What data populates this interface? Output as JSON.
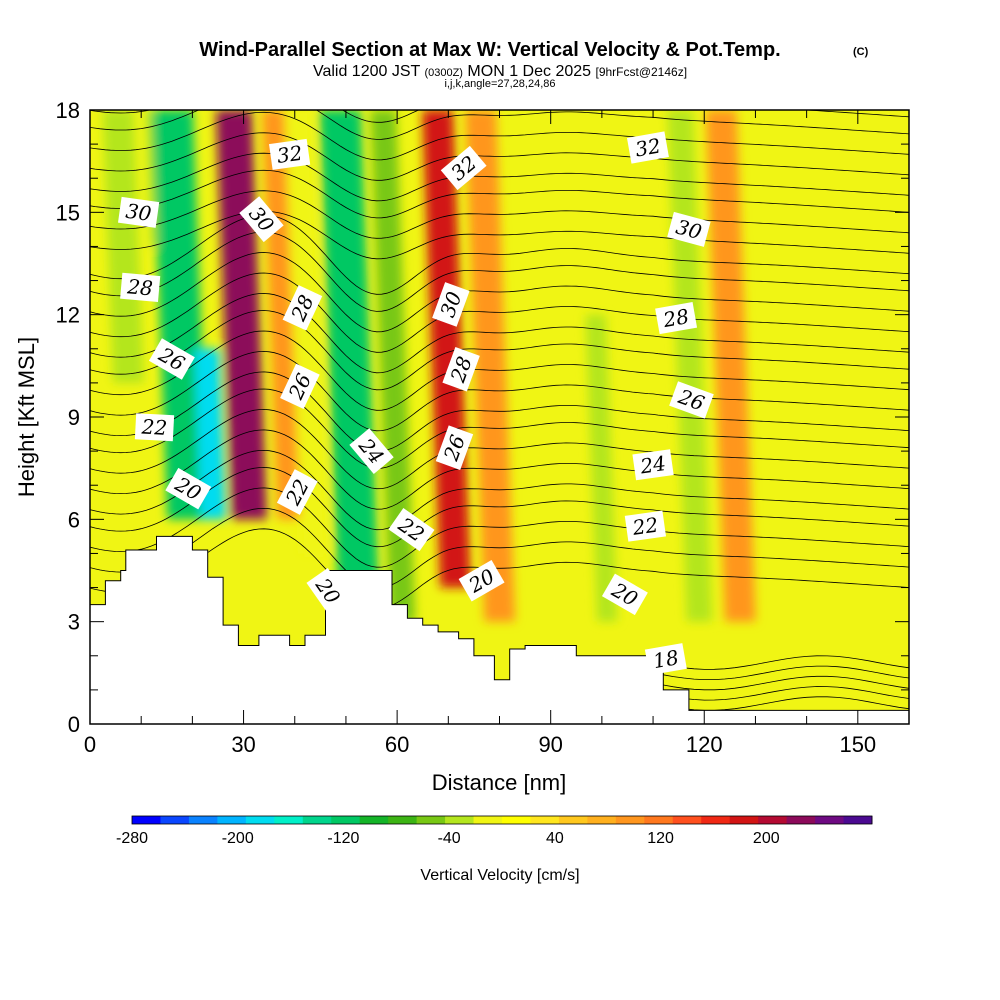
{
  "chart_data": {
    "type": "heatmap",
    "title": "Wind-Parallel Section at Max W: Vertical Velocity & Pot.Temp.",
    "copyright_mark": "(C)",
    "subtitle": {
      "valid": "Valid 1200 JST",
      "utc": "(0300Z)",
      "date": "MON 1 Dec 2025",
      "fcst": "[9hrFcst@2146z]",
      "indices": "i,j,k,angle=27,28,24,86"
    },
    "xlabel": "Distance [nm]",
    "ylabel": "Height [Kft MSL]",
    "xlim": [
      0,
      160
    ],
    "ylim": [
      0,
      18
    ],
    "xticks": [
      0,
      30,
      60,
      90,
      120,
      150
    ],
    "yticks": [
      0,
      3,
      6,
      9,
      12,
      15,
      18
    ],
    "colorbar": {
      "label": "Vertical Velocity [cm/s]",
      "ticks": [
        -280,
        -200,
        -120,
        -40,
        40,
        120,
        200
      ],
      "colors": [
        "#0000ff",
        "#0a46ff",
        "#0a82ff",
        "#00b4ff",
        "#00dcf0",
        "#00f0c8",
        "#00d58c",
        "#00c864",
        "#14b428",
        "#3cb414",
        "#78c814",
        "#b4e61e",
        "#f0f514",
        "#ffff00",
        "#ffe61e",
        "#ffc81e",
        "#ffb01e",
        "#ff961e",
        "#ff781e",
        "#ff501e",
        "#f02814",
        "#d21414",
        "#b40a32",
        "#8c0a5a",
        "#6e0a82",
        "#4b0a91"
      ]
    },
    "field_bands": [
      {
        "x": 4,
        "w": 6,
        "v": -50,
        "y0": 10,
        "y1": 18
      },
      {
        "x": 10,
        "w": 6,
        "v": -60,
        "y0": 14,
        "y1": 18
      },
      {
        "x": 17,
        "w": 8,
        "v": -130,
        "y0": 6,
        "y1": 18
      },
      {
        "x": 22,
        "w": 5,
        "v": -200,
        "y0": 6,
        "y1": 11
      },
      {
        "x": 29,
        "w": 7,
        "v": 180,
        "y0": 6,
        "y1": 18
      },
      {
        "x": 37,
        "w": 5,
        "v": 70,
        "y0": 6,
        "y1": 18
      },
      {
        "x": 42,
        "w": 5,
        "v": -40,
        "y0": 5,
        "y1": 18
      },
      {
        "x": 51,
        "w": 8,
        "v": -140,
        "y0": 4,
        "y1": 18
      },
      {
        "x": 60,
        "w": 5,
        "v": -70,
        "y0": 3,
        "y1": 18
      },
      {
        "x": 70,
        "w": 6,
        "v": 140,
        "y0": 4,
        "y1": 18
      },
      {
        "x": 79,
        "w": 6,
        "v": 60,
        "y0": 3,
        "y1": 18
      },
      {
        "x": 100,
        "w": 4,
        "v": -50,
        "y0": 3,
        "y1": 12
      },
      {
        "x": 118,
        "w": 5,
        "v": -50,
        "y0": 3,
        "y1": 18
      },
      {
        "x": 126,
        "w": 6,
        "v": 60,
        "y0": 3,
        "y1": 18
      }
    ],
    "terrain": {
      "x": [
        0,
        3,
        3,
        6,
        6,
        7,
        7,
        13,
        13,
        20,
        20,
        23,
        23,
        26,
        26,
        29,
        29,
        33,
        33,
        39,
        39,
        42,
        42,
        46,
        46,
        49,
        49,
        59,
        59,
        62,
        62,
        65,
        65,
        68,
        68,
        72,
        72,
        75,
        75,
        79,
        79,
        82,
        82,
        85,
        85,
        95,
        95,
        98,
        98,
        112,
        112,
        117,
        117,
        160
      ],
      "y": [
        3.5,
        3.5,
        4.2,
        4.2,
        4.5,
        4.5,
        5.1,
        5.1,
        5.5,
        5.5,
        5.1,
        5.1,
        4.3,
        4.3,
        2.9,
        2.9,
        2.3,
        2.3,
        2.6,
        2.6,
        2.3,
        2.3,
        2.6,
        2.6,
        4.5,
        4.5,
        4.5,
        4.5,
        3.5,
        3.5,
        3.1,
        3.1,
        2.9,
        2.9,
        2.7,
        2.7,
        2.5,
        2.5,
        2.0,
        2.0,
        1.3,
        1.3,
        2.2,
        2.2,
        2.3,
        2.3,
        2.0,
        2.0,
        2.0,
        2.0,
        1.0,
        1.0,
        0.4,
        0.4
      ]
    },
    "isentropes": [
      {
        "theta": 20,
        "label": "20"
      },
      {
        "theta": 22,
        "label": "22"
      },
      {
        "theta": 24,
        "label": "24"
      },
      {
        "theta": 26,
        "label": "26"
      },
      {
        "theta": 28,
        "label": "28"
      },
      {
        "theta": 30,
        "label": "30"
      },
      {
        "theta": 32,
        "label": "32"
      }
    ],
    "contour_labels": [
      {
        "text": "32",
        "x": 39,
        "y": 16.7,
        "angle": -8
      },
      {
        "text": "32",
        "x": 73,
        "y": 16.3,
        "angle": -40
      },
      {
        "text": "32",
        "x": 109,
        "y": 16.9,
        "angle": -10
      },
      {
        "text": "30",
        "x": 9.5,
        "y": 15.0,
        "angle": 8
      },
      {
        "text": "30",
        "x": 33.5,
        "y": 14.8,
        "angle": 50
      },
      {
        "text": "30",
        "x": 117,
        "y": 14.5,
        "angle": 15
      },
      {
        "text": "28",
        "x": 9.8,
        "y": 12.8,
        "angle": 5
      },
      {
        "text": "28",
        "x": 41.5,
        "y": 12.2,
        "angle": -65
      },
      {
        "text": "30",
        "x": 70.5,
        "y": 12.3,
        "angle": -70
      },
      {
        "text": "28",
        "x": 114.5,
        "y": 11.9,
        "angle": -10
      },
      {
        "text": "26",
        "x": 16,
        "y": 10.7,
        "angle": 30
      },
      {
        "text": "26",
        "x": 41,
        "y": 9.9,
        "angle": -65
      },
      {
        "text": "28",
        "x": 72.5,
        "y": 10.4,
        "angle": -70
      },
      {
        "text": "26",
        "x": 117.5,
        "y": 9.5,
        "angle": 20
      },
      {
        "text": "22",
        "x": 12.6,
        "y": 8.7,
        "angle": 3
      },
      {
        "text": "24",
        "x": 55,
        "y": 8.0,
        "angle": 50
      },
      {
        "text": "26",
        "x": 71.2,
        "y": 8.1,
        "angle": -70
      },
      {
        "text": "24",
        "x": 110,
        "y": 7.6,
        "angle": -8
      },
      {
        "text": "20",
        "x": 19.2,
        "y": 6.9,
        "angle": 30
      },
      {
        "text": "22",
        "x": 40.5,
        "y": 6.8,
        "angle": -62
      },
      {
        "text": "22",
        "x": 62.8,
        "y": 5.7,
        "angle": 35
      },
      {
        "text": "22",
        "x": 108.5,
        "y": 5.8,
        "angle": -8
      },
      {
        "text": "20",
        "x": 46.5,
        "y": 3.9,
        "angle": 55
      },
      {
        "text": "20",
        "x": 76.5,
        "y": 4.2,
        "angle": -30
      },
      {
        "text": "20",
        "x": 104.5,
        "y": 3.8,
        "angle": 30
      },
      {
        "text": "18",
        "x": 112.5,
        "y": 1.9,
        "angle": -10
      }
    ]
  }
}
